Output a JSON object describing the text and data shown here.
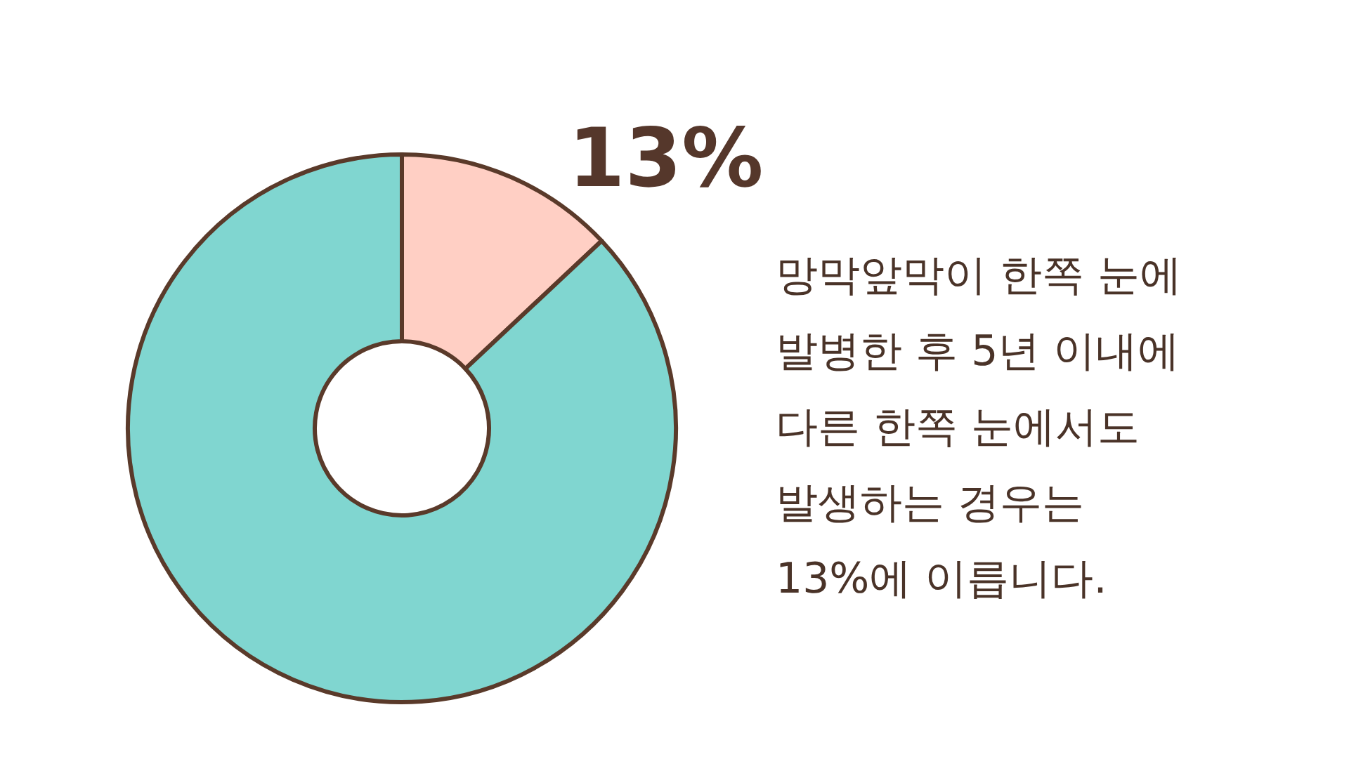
{
  "chart_data": {
    "type": "donut",
    "categories": [
      null,
      null
    ],
    "values": [
      13,
      87
    ],
    "colors": [
      "#ffcfc4",
      "#80d6d0"
    ],
    "value_labels": [
      "13%",
      null
    ],
    "annotations": [
      "망막앞막이 한쪽 눈에\n발병한 후 5년 이내에\n다른 한쪽 눈에서도\n발생하는 경우는\n13%에 이릅니다."
    ]
  }
}
